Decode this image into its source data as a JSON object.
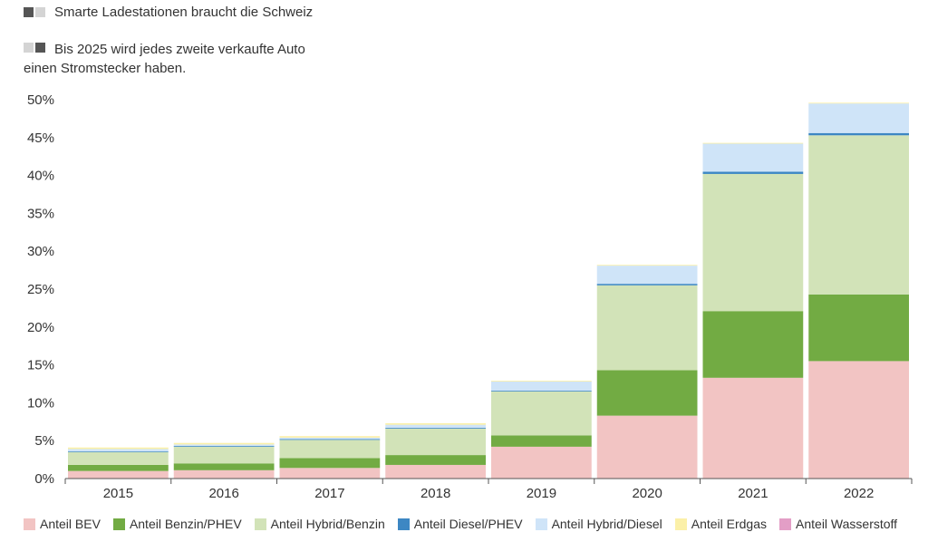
{
  "header": {
    "line1": "Smarte Ladestationen braucht die Schweiz",
    "line2a": "Bis 2025 wird jedes zweite verkaufte Auto",
    "line2b": "einen Stromstecker haben."
  },
  "chart_data": {
    "type": "bar",
    "stacked": true,
    "categories": [
      "2015",
      "2016",
      "2017",
      "2018",
      "2019",
      "2020",
      "2021",
      "2022"
    ],
    "y_ticks": [
      "0%",
      "5%",
      "10%",
      "15%",
      "20%",
      "25%",
      "30%",
      "35%",
      "40%",
      "45%",
      "50%"
    ],
    "ylim": [
      0,
      50
    ],
    "legend_position": "bottom",
    "series": [
      {
        "name": "Anteil BEV",
        "color": "#f2c4c3",
        "values": [
          1.0,
          1.1,
          1.4,
          1.8,
          4.2,
          8.3,
          13.3,
          15.5
        ]
      },
      {
        "name": "Anteil Benzin/PHEV",
        "color": "#72ab43",
        "values": [
          0.8,
          0.9,
          1.3,
          1.3,
          1.5,
          6.0,
          8.8,
          8.8
        ]
      },
      {
        "name": "Anteil Hybrid/Benzin",
        "color": "#d2e3b8",
        "values": [
          1.7,
          2.2,
          2.4,
          3.5,
          5.8,
          11.2,
          18.1,
          21.0
        ]
      },
      {
        "name": "Anteil Diesel/PHEV",
        "color": "#3d87c3",
        "values": [
          0.1,
          0.1,
          0.1,
          0.1,
          0.1,
          0.2,
          0.3,
          0.3
        ]
      },
      {
        "name": "Anteil Hybrid/Diesel",
        "color": "#cfe4f8",
        "values": [
          0.3,
          0.2,
          0.2,
          0.4,
          1.2,
          2.4,
          3.7,
          3.9
        ]
      },
      {
        "name": "Anteil Erdgas",
        "color": "#fbf0a8",
        "values": [
          0.2,
          0.2,
          0.2,
          0.2,
          0.1,
          0.1,
          0.1,
          0.1
        ]
      },
      {
        "name": "Anteil Wasserstoff",
        "color": "#e39ec6",
        "values": [
          0.0,
          0.0,
          0.0,
          0.0,
          0.0,
          0.0,
          0.0,
          0.0
        ]
      }
    ]
  }
}
